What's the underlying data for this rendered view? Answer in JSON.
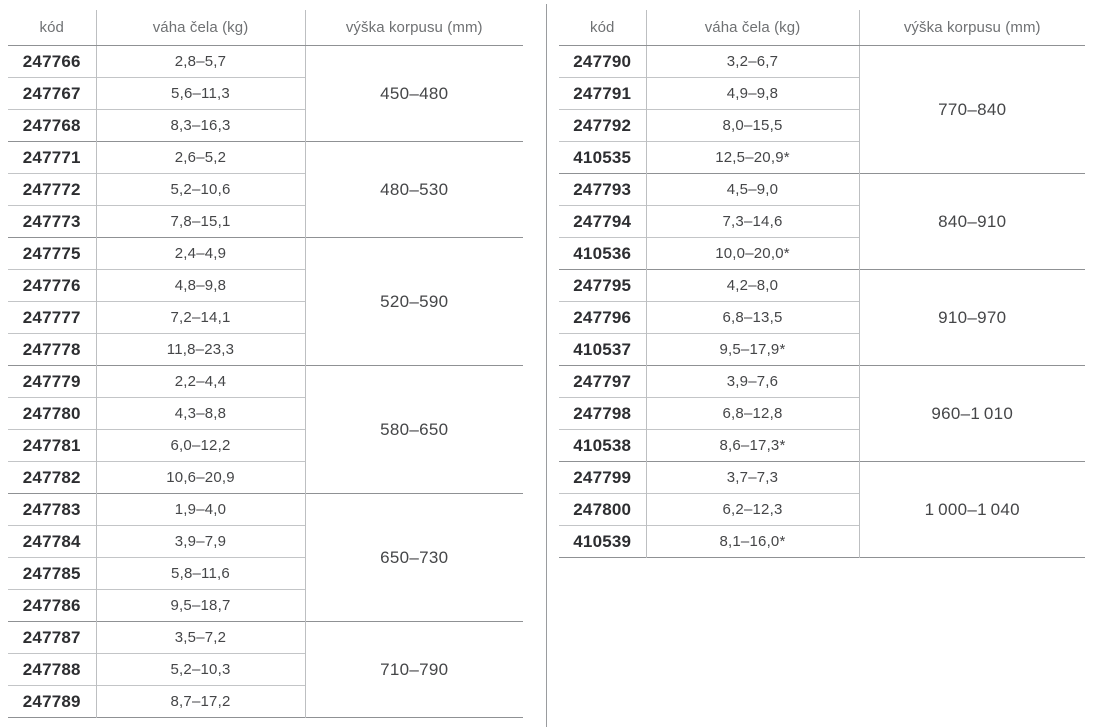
{
  "tables": [
    {
      "id": "left",
      "headers": {
        "code": "kód",
        "weight": "váha čela (kg)",
        "height": "výška korpusu (mm)"
      },
      "groups": [
        {
          "height_range": "450–480",
          "rows": [
            {
              "code": "247766",
              "weight": "2,8–5,7"
            },
            {
              "code": "247767",
              "weight": "5,6–11,3"
            },
            {
              "code": "247768",
              "weight": "8,3–16,3"
            }
          ]
        },
        {
          "height_range": "480–530",
          "rows": [
            {
              "code": "247771",
              "weight": "2,6–5,2"
            },
            {
              "code": "247772",
              "weight": "5,2–10,6"
            },
            {
              "code": "247773",
              "weight": "7,8–15,1"
            }
          ]
        },
        {
          "height_range": "520–590",
          "rows": [
            {
              "code": "247775",
              "weight": "2,4–4,9"
            },
            {
              "code": "247776",
              "weight": "4,8–9,8"
            },
            {
              "code": "247777",
              "weight": "7,2–14,1"
            },
            {
              "code": "247778",
              "weight": "11,8–23,3"
            }
          ]
        },
        {
          "height_range": "580–650",
          "rows": [
            {
              "code": "247779",
              "weight": "2,2–4,4"
            },
            {
              "code": "247780",
              "weight": "4,3–8,8"
            },
            {
              "code": "247781",
              "weight": "6,0–12,2"
            },
            {
              "code": "247782",
              "weight": "10,6–20,9"
            }
          ]
        },
        {
          "height_range": "650–730",
          "rows": [
            {
              "code": "247783",
              "weight": "1,9–4,0"
            },
            {
              "code": "247784",
              "weight": "3,9–7,9"
            },
            {
              "code": "247785",
              "weight": "5,8–11,6"
            },
            {
              "code": "247786",
              "weight": "9,5–18,7"
            }
          ]
        },
        {
          "height_range": "710–790",
          "rows": [
            {
              "code": "247787",
              "weight": "3,5–7,2"
            },
            {
              "code": "247788",
              "weight": "5,2–10,3"
            },
            {
              "code": "247789",
              "weight": "8,7–17,2"
            }
          ]
        }
      ]
    },
    {
      "id": "right",
      "headers": {
        "code": "kód",
        "weight": "váha čela (kg)",
        "height": "výška korpusu (mm)"
      },
      "groups": [
        {
          "height_range": "770–840",
          "rows": [
            {
              "code": "247790",
              "weight": "3,2–6,7"
            },
            {
              "code": "247791",
              "weight": "4,9–9,8"
            },
            {
              "code": "247792",
              "weight": "8,0–15,5"
            },
            {
              "code": "410535",
              "weight": "12,5–20,9*"
            }
          ]
        },
        {
          "height_range": "840–910",
          "rows": [
            {
              "code": "247793",
              "weight": "4,5–9,0"
            },
            {
              "code": "247794",
              "weight": "7,3–14,6"
            },
            {
              "code": "410536",
              "weight": "10,0–20,0*"
            }
          ]
        },
        {
          "height_range": "910–970",
          "rows": [
            {
              "code": "247795",
              "weight": "4,2–8,0"
            },
            {
              "code": "247796",
              "weight": "6,8–13,5"
            },
            {
              "code": "410537",
              "weight": "9,5–17,9*"
            }
          ]
        },
        {
          "height_range": "960–1 010",
          "rows": [
            {
              "code": "247797",
              "weight": "3,9–7,6"
            },
            {
              "code": "247798",
              "weight": "6,8–12,8"
            },
            {
              "code": "410538",
              "weight": "8,6–17,3*"
            }
          ]
        },
        {
          "height_range": "1 000–1 040",
          "rows": [
            {
              "code": "247799",
              "weight": "3,7–7,3"
            },
            {
              "code": "247800",
              "weight": "6,2–12,3"
            },
            {
              "code": "410539",
              "weight": "8,1–16,0*"
            }
          ]
        }
      ]
    }
  ],
  "colors": {
    "code_text": "#2d2e31",
    "value_text": "#454648",
    "header_text": "#6f7173",
    "light_rule": "#c3c5c7",
    "dark_rule": "#8f9194",
    "column_divider": "#9a9c9f"
  }
}
